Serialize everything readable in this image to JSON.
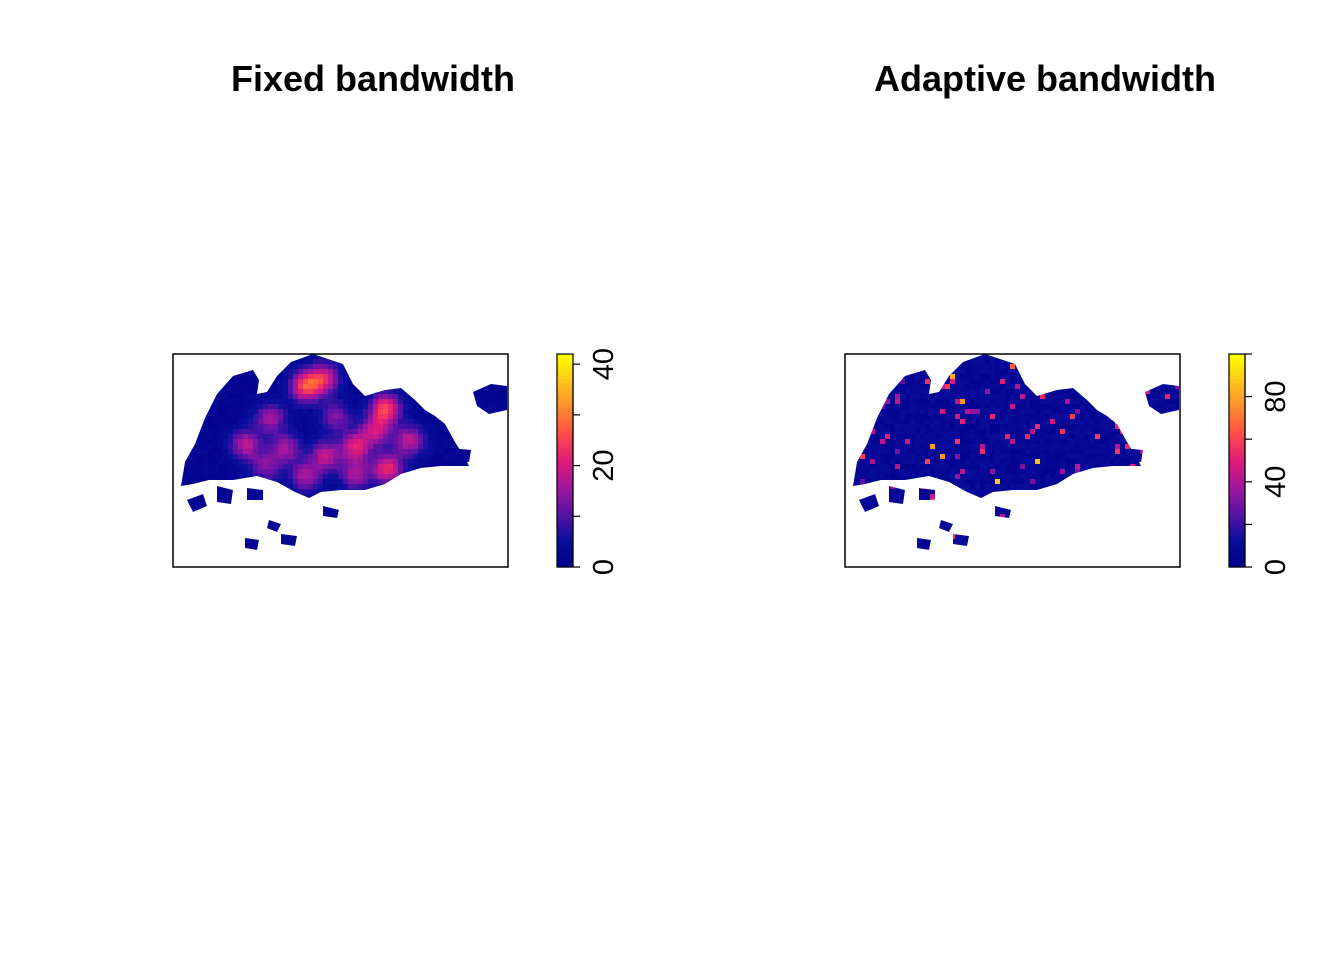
{
  "chart_data": [
    {
      "type": "heatmap",
      "title": "Fixed bandwidth",
      "colorbar": {
        "range": [
          0,
          42
        ],
        "ticks": [
          0,
          10,
          20,
          30,
          40
        ],
        "tick_labels": [
          "0",
          "20",
          "40"
        ],
        "labeled_ticks": [
          0,
          20,
          40
        ]
      },
      "pattern": "smooth",
      "colormap": [
        "#00008b",
        "#0a0f9e",
        "#5a12a6",
        "#a3169c",
        "#e01a7a",
        "#ff4a4a",
        "#ff8a2e",
        "#ffc21a",
        "#ffff00"
      ]
    },
    {
      "type": "heatmap",
      "title": "Adaptive bandwidth",
      "colorbar": {
        "range": [
          0,
          100
        ],
        "ticks": [
          0,
          20,
          40,
          60,
          80,
          100
        ],
        "tick_labels": [
          "0",
          "40",
          "80"
        ],
        "labeled_ticks": [
          0,
          40,
          80
        ]
      },
      "pattern": "speckled",
      "colormap": [
        "#00008b",
        "#0a0f9e",
        "#5a12a6",
        "#a3169c",
        "#e01a7a",
        "#ff4a4a",
        "#ff8a2e",
        "#ffc21a",
        "#ffff00"
      ]
    }
  ]
}
